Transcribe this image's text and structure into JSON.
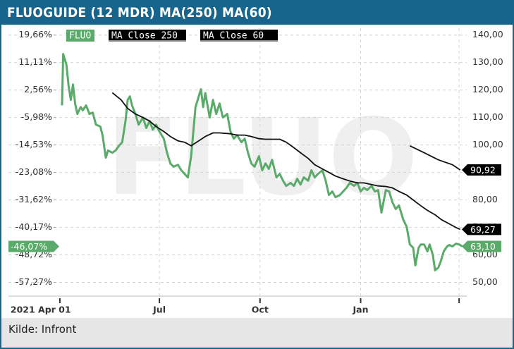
{
  "chart_data": {
    "type": "line",
    "title": "FLUOGUIDE (12 MDR) MA(250) MA(60)",
    "watermark": "FLUO",
    "source": "Kilde: Infront",
    "xlim": [
      -47,
      372
    ],
    "xticks": [
      {
        "value": 0,
        "label": "2021 Apr 01"
      },
      {
        "value": 91,
        "label": "Jul"
      },
      {
        "value": 183,
        "label": "Oct"
      },
      {
        "value": 275,
        "label": "Jan"
      }
    ],
    "xminor_ticks": [
      365
    ],
    "ylim": [
      45,
      142.5
    ],
    "yticks": [
      {
        "value": 140,
        "label": "140,00"
      },
      {
        "value": 130,
        "label": "130,00"
      },
      {
        "value": 120,
        "label": "120,00"
      },
      {
        "value": 110,
        "label": "110,00"
      },
      {
        "value": 100,
        "label": "100,00"
      },
      {
        "value": 90,
        "label": "90,00"
      },
      {
        "value": 80,
        "label": "80,00"
      },
      {
        "value": 70,
        "label": "70,00"
      },
      {
        "value": 60,
        "label": "60,00"
      },
      {
        "value": 50,
        "label": "50,00"
      }
    ],
    "y2lim": [
      -61.54,
      21.79
    ],
    "y2ticks": [
      {
        "value": 19.66,
        "label": "19,66%"
      },
      {
        "value": 11.11,
        "label": "11,11%"
      },
      {
        "value": 2.56,
        "label": "2,56%"
      },
      {
        "value": -5.98,
        "label": "-5,98%"
      },
      {
        "value": -14.53,
        "label": "-14,53%"
      },
      {
        "value": -23.08,
        "label": "-23,08%"
      },
      {
        "value": -31.62,
        "label": "-31,62%"
      },
      {
        "value": -40.17,
        "label": "-40,17%"
      },
      {
        "value": -48.72,
        "label": "-48,72%"
      },
      {
        "value": -57.27,
        "label": "-57,27%"
      }
    ],
    "grid": true,
    "series": [
      {
        "name": "FLUO",
        "color": "#5aab6a",
        "end_label": "63,10",
        "end_value_y2": -46.07,
        "end_label_y2": "-46,07%",
        "x": [
          2,
          3,
          6,
          8,
          10,
          12,
          14,
          16,
          19,
          21,
          24,
          27,
          30,
          33,
          37,
          39,
          42,
          44,
          48,
          51,
          54,
          57,
          60,
          62,
          64,
          66,
          69,
          72,
          76,
          79,
          82,
          85,
          88,
          91,
          95,
          98,
          101,
          104,
          108,
          111,
          114,
          117,
          120,
          122,
          124,
          127,
          129,
          131,
          133,
          137,
          140,
          143,
          146,
          149,
          153,
          156,
          159,
          162,
          166,
          169,
          172,
          175,
          178,
          182,
          185,
          188,
          191,
          194,
          198,
          201,
          204,
          207,
          211,
          214,
          217,
          220,
          223,
          227,
          230,
          233,
          236,
          240,
          243,
          246,
          249,
          252,
          256,
          259,
          262,
          265,
          269,
          272,
          275,
          278,
          281,
          285,
          288,
          291,
          294,
          298,
          301,
          304,
          307,
          310,
          314,
          317,
          320,
          323,
          325,
          328,
          330,
          333,
          336,
          338,
          341,
          343,
          346,
          348,
          351,
          354,
          356,
          359,
          362,
          365,
          368
        ],
        "values": [
          114.4,
          133.1,
          129.2,
          121.5,
          116.4,
          122,
          115,
          111.3,
          113.8,
          112.6,
          114.4,
          111.3,
          111.8,
          107.4,
          106.7,
          103.6,
          95.4,
          98,
          97.2,
          98,
          99.7,
          101,
          108.7,
          116.4,
          117.7,
          114.4,
          111.3,
          107.4,
          110,
          106.2,
          108.7,
          105.6,
          107.4,
          104.9,
          102.3,
          97.2,
          93.3,
          92.1,
          92.8,
          90.8,
          89.5,
          88.2,
          95.9,
          104.9,
          113.8,
          117.7,
          120.3,
          113.8,
          118.9,
          110,
          116.4,
          111.3,
          115.1,
          110,
          111.3,
          104.9,
          102.3,
          103.6,
          101,
          102.3,
          97.2,
          93.3,
          92.1,
          95.9,
          90.8,
          93.3,
          91.3,
          94.6,
          88.2,
          89.5,
          87,
          85.1,
          86.2,
          85.1,
          87.7,
          85.6,
          88.2,
          87,
          90.8,
          88.2,
          89.5,
          90.8,
          87,
          81.8,
          83.1,
          81,
          81.8,
          83.1,
          84.4,
          86.2,
          85.1,
          86.2,
          83.1,
          84.4,
          83.6,
          85.1,
          83.1,
          83.6,
          75.4,
          83.6,
          83.1,
          79.2,
          76.7,
          78,
          72.8,
          70.3,
          63.8,
          62.6,
          56.2,
          62.6,
          63.8,
          63.8,
          61.3,
          63.8,
          60,
          54.4,
          55.4,
          57.4,
          61.3,
          63.1,
          63.6,
          63.1,
          64.1,
          63.8,
          63.1
        ]
      },
      {
        "name": "MA Close 250",
        "color": "#111111",
        "end_label": "90,92",
        "x": [
          320,
          333,
          346,
          359,
          366
        ],
        "values": [
          99.7,
          97.2,
          94.6,
          92.8,
          90.92
        ]
      },
      {
        "name": "MA Close 60",
        "color": "#111111",
        "end_label": "69,27",
        "x": [
          48,
          56,
          62,
          69,
          76,
          82,
          88,
          95,
          101,
          108,
          114,
          120,
          127,
          133,
          140,
          146,
          156,
          162,
          169,
          175,
          182,
          188,
          194,
          201,
          207,
          214,
          220,
          227,
          233,
          240,
          246,
          252,
          259,
          265,
          272,
          278,
          285,
          291,
          298,
          304,
          310,
          317,
          323,
          330,
          336,
          343,
          349,
          356,
          362,
          366
        ],
        "values": [
          119,
          116.4,
          113.3,
          111.3,
          110,
          108.7,
          106.7,
          104.9,
          103.1,
          101.5,
          101,
          99.7,
          101.5,
          103.1,
          104.4,
          104.4,
          104.1,
          103.6,
          103.6,
          103.1,
          102.3,
          102.1,
          102.1,
          102.1,
          101,
          99,
          97.2,
          95.1,
          92.8,
          91.3,
          90,
          88.7,
          87.7,
          86.9,
          86.2,
          86.2,
          85.6,
          85.1,
          84.9,
          84.4,
          83.1,
          81.8,
          80,
          77.9,
          76.2,
          74.6,
          72.8,
          71.3,
          70,
          69.27
        ]
      }
    ]
  }
}
